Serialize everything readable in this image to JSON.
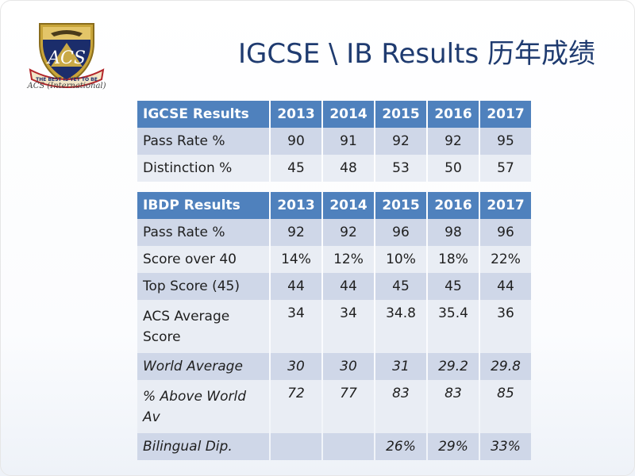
{
  "logo": {
    "motto": "THE BEST IS YET TO BE",
    "monogram": "ACS",
    "caption": "ACS (International)"
  },
  "title": "IGCSE \\ IB Results 历年成绩",
  "igcse_table": {
    "header": [
      "IGCSE Results",
      "2013",
      "2014",
      "2015",
      "2016",
      "2017"
    ],
    "rows": [
      {
        "label": "Pass Rate %",
        "values": [
          "90",
          "91",
          "92",
          "92",
          "95"
        ]
      },
      {
        "label": "Distinction %",
        "values": [
          "45",
          "48",
          "53",
          "50",
          "57"
        ]
      }
    ]
  },
  "ibdp_table": {
    "header": [
      "IBDP Results",
      "2013",
      "2014",
      "2015",
      "2016",
      "2017"
    ],
    "rows": [
      {
        "label": "Pass Rate %",
        "values": [
          "92",
          "92",
          "96",
          "98",
          "96"
        ]
      },
      {
        "label": "Score over 40",
        "values": [
          "14%",
          "12%",
          "10%",
          "18%",
          "22%"
        ]
      },
      {
        "label": "Top Score (45)",
        "values": [
          "44",
          "44",
          "45",
          "45",
          "44"
        ]
      },
      {
        "label": "ACS Average Score",
        "values": [
          "34",
          "34",
          "34.8",
          "35.4",
          "36"
        ]
      },
      {
        "label": "World Average",
        "values": [
          "30",
          "30",
          "31",
          "29.2",
          "29.8"
        ]
      },
      {
        "label": "% Above World Av",
        "values": [
          "72",
          "77",
          "83",
          "83",
          "85"
        ]
      },
      {
        "label": "Bilingual Dip.",
        "values": [
          "",
          "",
          "26%",
          "29%",
          "33%"
        ]
      }
    ]
  }
}
